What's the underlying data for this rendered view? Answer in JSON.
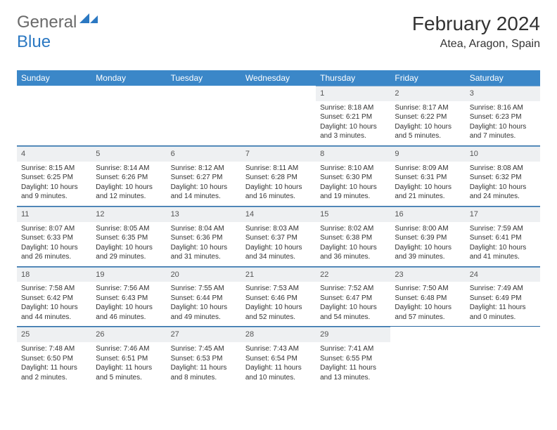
{
  "brand": {
    "word1": "General",
    "word2": "Blue"
  },
  "header": {
    "month_title": "February 2024",
    "location": "Atea, Aragon, Spain"
  },
  "colors": {
    "header_bg": "#3b87c8",
    "header_text": "#ffffff",
    "daynum_bg": "#eef0f2",
    "rule": "#2b6aa3",
    "logo_blue": "#2b78c2",
    "logo_gray": "#6a6a6a",
    "body_text": "#333333",
    "page_bg": "#ffffff"
  },
  "weekdays": [
    "Sunday",
    "Monday",
    "Tuesday",
    "Wednesday",
    "Thursday",
    "Friday",
    "Saturday"
  ],
  "weeks": [
    [
      {
        "empty": true
      },
      {
        "empty": true
      },
      {
        "empty": true
      },
      {
        "empty": true
      },
      {
        "day": "1",
        "sunrise": "8:18 AM",
        "sunset": "6:21 PM",
        "daylight": "10 hours and 3 minutes."
      },
      {
        "day": "2",
        "sunrise": "8:17 AM",
        "sunset": "6:22 PM",
        "daylight": "10 hours and 5 minutes."
      },
      {
        "day": "3",
        "sunrise": "8:16 AM",
        "sunset": "6:23 PM",
        "daylight": "10 hours and 7 minutes."
      }
    ],
    [
      {
        "day": "4",
        "sunrise": "8:15 AM",
        "sunset": "6:25 PM",
        "daylight": "10 hours and 9 minutes."
      },
      {
        "day": "5",
        "sunrise": "8:14 AM",
        "sunset": "6:26 PM",
        "daylight": "10 hours and 12 minutes."
      },
      {
        "day": "6",
        "sunrise": "8:12 AM",
        "sunset": "6:27 PM",
        "daylight": "10 hours and 14 minutes."
      },
      {
        "day": "7",
        "sunrise": "8:11 AM",
        "sunset": "6:28 PM",
        "daylight": "10 hours and 16 minutes."
      },
      {
        "day": "8",
        "sunrise": "8:10 AM",
        "sunset": "6:30 PM",
        "daylight": "10 hours and 19 minutes."
      },
      {
        "day": "9",
        "sunrise": "8:09 AM",
        "sunset": "6:31 PM",
        "daylight": "10 hours and 21 minutes."
      },
      {
        "day": "10",
        "sunrise": "8:08 AM",
        "sunset": "6:32 PM",
        "daylight": "10 hours and 24 minutes."
      }
    ],
    [
      {
        "day": "11",
        "sunrise": "8:07 AM",
        "sunset": "6:33 PM",
        "daylight": "10 hours and 26 minutes."
      },
      {
        "day": "12",
        "sunrise": "8:05 AM",
        "sunset": "6:35 PM",
        "daylight": "10 hours and 29 minutes."
      },
      {
        "day": "13",
        "sunrise": "8:04 AM",
        "sunset": "6:36 PM",
        "daylight": "10 hours and 31 minutes."
      },
      {
        "day": "14",
        "sunrise": "8:03 AM",
        "sunset": "6:37 PM",
        "daylight": "10 hours and 34 minutes."
      },
      {
        "day": "15",
        "sunrise": "8:02 AM",
        "sunset": "6:38 PM",
        "daylight": "10 hours and 36 minutes."
      },
      {
        "day": "16",
        "sunrise": "8:00 AM",
        "sunset": "6:39 PM",
        "daylight": "10 hours and 39 minutes."
      },
      {
        "day": "17",
        "sunrise": "7:59 AM",
        "sunset": "6:41 PM",
        "daylight": "10 hours and 41 minutes."
      }
    ],
    [
      {
        "day": "18",
        "sunrise": "7:58 AM",
        "sunset": "6:42 PM",
        "daylight": "10 hours and 44 minutes."
      },
      {
        "day": "19",
        "sunrise": "7:56 AM",
        "sunset": "6:43 PM",
        "daylight": "10 hours and 46 minutes."
      },
      {
        "day": "20",
        "sunrise": "7:55 AM",
        "sunset": "6:44 PM",
        "daylight": "10 hours and 49 minutes."
      },
      {
        "day": "21",
        "sunrise": "7:53 AM",
        "sunset": "6:46 PM",
        "daylight": "10 hours and 52 minutes."
      },
      {
        "day": "22",
        "sunrise": "7:52 AM",
        "sunset": "6:47 PM",
        "daylight": "10 hours and 54 minutes."
      },
      {
        "day": "23",
        "sunrise": "7:50 AM",
        "sunset": "6:48 PM",
        "daylight": "10 hours and 57 minutes."
      },
      {
        "day": "24",
        "sunrise": "7:49 AM",
        "sunset": "6:49 PM",
        "daylight": "11 hours and 0 minutes."
      }
    ],
    [
      {
        "day": "25",
        "sunrise": "7:48 AM",
        "sunset": "6:50 PM",
        "daylight": "11 hours and 2 minutes."
      },
      {
        "day": "26",
        "sunrise": "7:46 AM",
        "sunset": "6:51 PM",
        "daylight": "11 hours and 5 minutes."
      },
      {
        "day": "27",
        "sunrise": "7:45 AM",
        "sunset": "6:53 PM",
        "daylight": "11 hours and 8 minutes."
      },
      {
        "day": "28",
        "sunrise": "7:43 AM",
        "sunset": "6:54 PM",
        "daylight": "11 hours and 10 minutes."
      },
      {
        "day": "29",
        "sunrise": "7:41 AM",
        "sunset": "6:55 PM",
        "daylight": "11 hours and 13 minutes."
      },
      {
        "empty": true
      },
      {
        "empty": true
      }
    ]
  ],
  "labels": {
    "sunrise_prefix": "Sunrise: ",
    "sunset_prefix": "Sunset: ",
    "daylight_prefix": "Daylight: "
  }
}
